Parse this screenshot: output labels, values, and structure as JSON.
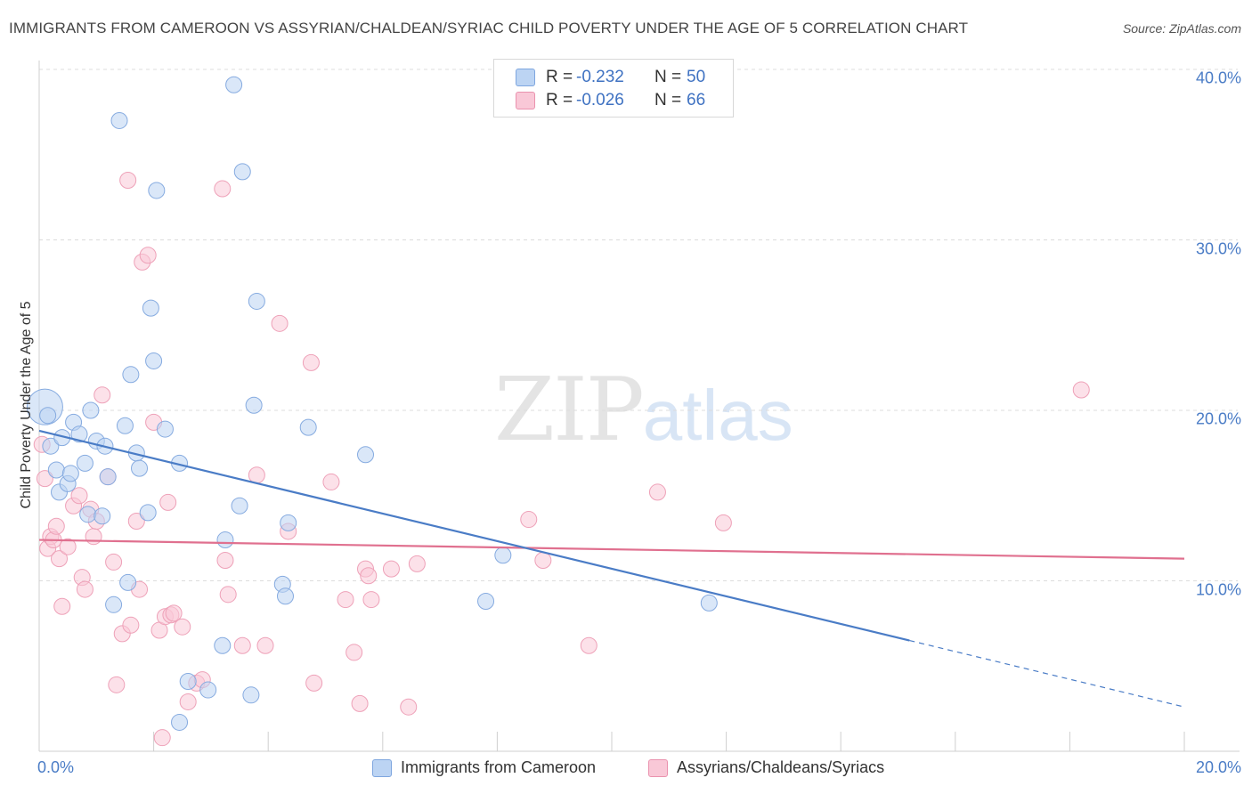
{
  "header": {
    "title": "IMMIGRANTS FROM CAMEROON VS ASSYRIAN/CHALDEAN/SYRIAC CHILD POVERTY UNDER THE AGE OF 5 CORRELATION CHART",
    "source": "Source: ZipAtlas.com"
  },
  "watermark": {
    "zip": "ZIP",
    "atlas": "atlas"
  },
  "legend": {
    "r_label": "R =",
    "n_label": "N =",
    "rows": [
      {
        "r": "-0.232",
        "n": "50"
      },
      {
        "r": "-0.026",
        "n": "66"
      }
    ]
  },
  "colors": {
    "blue": "#4a7cc6",
    "blue_fill": "#bcd4f3",
    "pink": "#e0708f",
    "pink_fill": "#f9c8d7"
  },
  "chart_data": {
    "type": "scatter",
    "ylabel": "Child Poverty Under the Age of 5",
    "xlim": [
      0,
      20
    ],
    "ylim": [
      0,
      41
    ],
    "x_ticks": [
      "0.0%",
      "20.0%"
    ],
    "y_ticks": [
      {
        "value": 10,
        "label": "10.0%"
      },
      {
        "value": 20,
        "label": "20.0%"
      },
      {
        "value": 30,
        "label": "30.0%"
      },
      {
        "value": 40,
        "label": "40.0%"
      }
    ],
    "grid": "horizontal-dashed",
    "series": [
      {
        "name": "Immigrants from Cameroon",
        "color": "#4a7cc6",
        "trend": {
          "x": [
            0,
            15.2
          ],
          "y": [
            18.8,
            6.5
          ],
          "dashed_to": [
            20,
            2.6
          ]
        },
        "points": [
          [
            0.1,
            20.2
          ],
          [
            0.15,
            19.7
          ],
          [
            0.2,
            17.9
          ],
          [
            0.3,
            16.5
          ],
          [
            0.35,
            15.2
          ],
          [
            0.4,
            18.4
          ],
          [
            0.5,
            15.7
          ],
          [
            0.55,
            16.3
          ],
          [
            0.6,
            19.3
          ],
          [
            0.7,
            18.6
          ],
          [
            0.8,
            16.9
          ],
          [
            0.85,
            13.9
          ],
          [
            0.9,
            20.0
          ],
          [
            1.0,
            18.2
          ],
          [
            1.1,
            13.8
          ],
          [
            1.15,
            17.9
          ],
          [
            1.2,
            16.1
          ],
          [
            1.3,
            8.6
          ],
          [
            1.4,
            37.0
          ],
          [
            1.5,
            19.1
          ],
          [
            1.55,
            9.9
          ],
          [
            1.6,
            22.1
          ],
          [
            1.7,
            17.5
          ],
          [
            1.75,
            16.6
          ],
          [
            1.9,
            14.0
          ],
          [
            1.95,
            26.0
          ],
          [
            2.0,
            22.9
          ],
          [
            2.05,
            32.9
          ],
          [
            2.2,
            18.9
          ],
          [
            2.45,
            1.7
          ],
          [
            2.45,
            16.9
          ],
          [
            2.6,
            4.1
          ],
          [
            2.95,
            3.6
          ],
          [
            3.2,
            6.2
          ],
          [
            3.25,
            12.4
          ],
          [
            3.4,
            39.1
          ],
          [
            3.5,
            14.4
          ],
          [
            3.55,
            34.0
          ],
          [
            3.7,
            3.3
          ],
          [
            3.75,
            20.3
          ],
          [
            3.8,
            26.4
          ],
          [
            4.25,
            9.8
          ],
          [
            4.3,
            9.1
          ],
          [
            4.35,
            13.4
          ],
          [
            4.7,
            19.0
          ],
          [
            5.7,
            17.4
          ],
          [
            7.8,
            8.8
          ],
          [
            8.1,
            11.5
          ],
          [
            11.7,
            8.7
          ]
        ],
        "big_point": [
          0.1,
          20.2
        ]
      },
      {
        "name": "Assyrians/Chaldeans/Syriacs",
        "color": "#e0708f",
        "trend": {
          "x": [
            0,
            20
          ],
          "y": [
            12.4,
            11.3
          ]
        },
        "points": [
          [
            0.05,
            18.0
          ],
          [
            0.1,
            16.0
          ],
          [
            0.15,
            11.9
          ],
          [
            0.2,
            12.6
          ],
          [
            0.25,
            12.4
          ],
          [
            0.3,
            13.2
          ],
          [
            0.35,
            11.3
          ],
          [
            0.4,
            8.5
          ],
          [
            0.5,
            12.0
          ],
          [
            0.6,
            14.4
          ],
          [
            0.7,
            15.0
          ],
          [
            0.75,
            10.2
          ],
          [
            0.8,
            9.5
          ],
          [
            0.9,
            14.2
          ],
          [
            0.95,
            12.6
          ],
          [
            1.0,
            13.5
          ],
          [
            1.1,
            20.9
          ],
          [
            1.2,
            16.1
          ],
          [
            1.3,
            11.1
          ],
          [
            1.35,
            3.9
          ],
          [
            1.45,
            6.9
          ],
          [
            1.55,
            33.5
          ],
          [
            1.6,
            7.4
          ],
          [
            1.7,
            13.5
          ],
          [
            1.75,
            9.5
          ],
          [
            1.8,
            28.7
          ],
          [
            1.9,
            29.1
          ],
          [
            2.0,
            19.3
          ],
          [
            2.1,
            7.1
          ],
          [
            2.15,
            0.8
          ],
          [
            2.2,
            7.9
          ],
          [
            2.25,
            14.6
          ],
          [
            2.3,
            8.0
          ],
          [
            2.35,
            8.1
          ],
          [
            2.5,
            7.3
          ],
          [
            2.6,
            2.9
          ],
          [
            2.75,
            4.0
          ],
          [
            2.85,
            4.2
          ],
          [
            3.2,
            33.0
          ],
          [
            3.25,
            11.2
          ],
          [
            3.3,
            9.2
          ],
          [
            3.55,
            6.2
          ],
          [
            3.8,
            16.2
          ],
          [
            3.95,
            6.2
          ],
          [
            4.2,
            25.1
          ],
          [
            4.35,
            12.9
          ],
          [
            4.75,
            22.8
          ],
          [
            4.8,
            4.0
          ],
          [
            5.1,
            15.8
          ],
          [
            5.35,
            8.9
          ],
          [
            5.5,
            5.8
          ],
          [
            5.6,
            2.8
          ],
          [
            5.7,
            10.7
          ],
          [
            5.75,
            10.3
          ],
          [
            5.8,
            8.9
          ],
          [
            6.15,
            10.7
          ],
          [
            6.45,
            2.6
          ],
          [
            6.6,
            11.0
          ],
          [
            8.55,
            13.6
          ],
          [
            8.8,
            11.2
          ],
          [
            9.6,
            6.2
          ],
          [
            10.8,
            15.2
          ],
          [
            11.95,
            13.4
          ],
          [
            18.2,
            21.2
          ]
        ]
      }
    ]
  },
  "bottom_legend": [
    "Immigrants from Cameroon",
    "Assyrians/Chaldeans/Syriacs"
  ]
}
